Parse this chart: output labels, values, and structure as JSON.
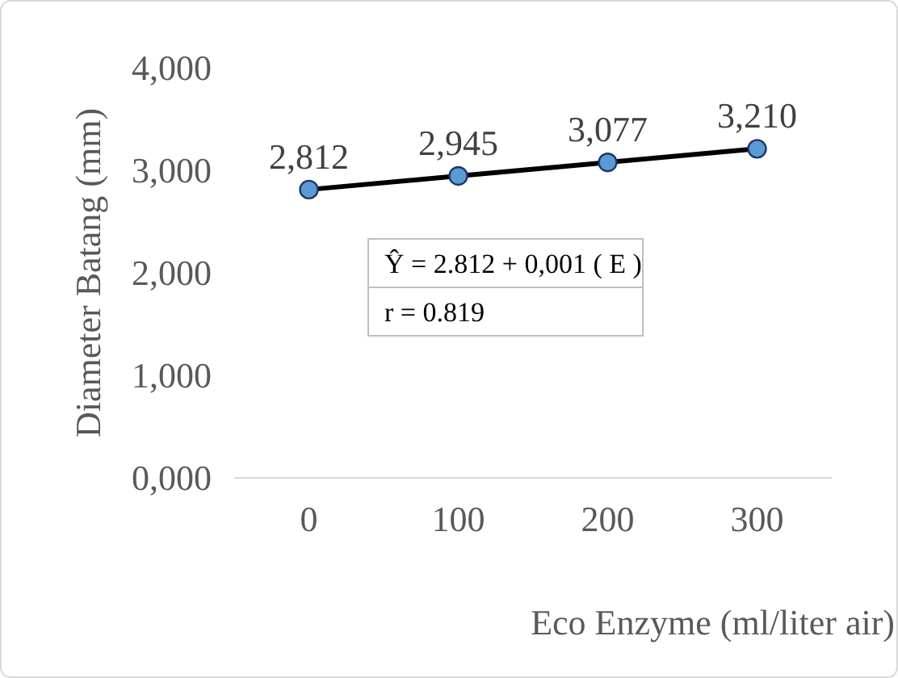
{
  "chart_data": {
    "type": "line",
    "categories": [
      "0",
      "100",
      "200",
      "300"
    ],
    "series": [
      {
        "color": "#000000",
        "values": [
          2.812,
          2.945,
          3.077,
          3.21
        ],
        "value_labels": [
          "2,812",
          "2,945",
          "3,077",
          "3,210"
        ]
      }
    ],
    "ylim": [
      0,
      4
    ],
    "yticks": [
      {
        "value": 0,
        "label": "0,000"
      },
      {
        "value": 1,
        "label": "1,000"
      },
      {
        "value": 2,
        "label": "2,000"
      },
      {
        "value": 3,
        "label": "3,000"
      },
      {
        "value": 4,
        "label": "4,000"
      }
    ],
    "xlabel": "Eco Enzyme (ml/liter air)",
    "ylabel": "Diameter Batang (mm)",
    "annotations": [
      "Ŷ = 2.812 + 0,001 ( E )",
      "r = 0.819"
    ],
    "marker": "circle",
    "grid": false
  }
}
